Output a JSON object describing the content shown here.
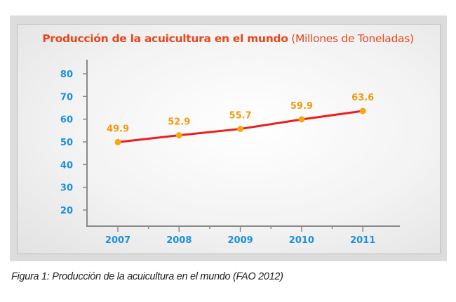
{
  "chart_data": {
    "type": "line",
    "title": "Producción de la acuicultura en el mundo",
    "subtitle": "(Millones de Toneladas)",
    "categories": [
      "2007",
      "2008",
      "2009",
      "2010",
      "2011"
    ],
    "series": [
      {
        "values": [
          49.9,
          52.9,
          55.7,
          59.9,
          63.6
        ],
        "color": "#ee1c1c",
        "marker_color": "#f7a712"
      }
    ],
    "data_labels": [
      "49.9",
      "52.9",
      "55.7",
      "59.9",
      "63.6"
    ],
    "yticks": [
      20,
      30,
      40,
      50,
      60,
      70,
      80
    ],
    "ylim": [
      20,
      80
    ],
    "grid": false,
    "colors": {
      "title": "#e8471c",
      "ticks": "#1b8fe0",
      "data_labels": "#f29a10",
      "axis": "#8a8a8a"
    }
  },
  "caption": "Figura 1: Producción de la acuicultura en el mundo (FAO 2012)"
}
